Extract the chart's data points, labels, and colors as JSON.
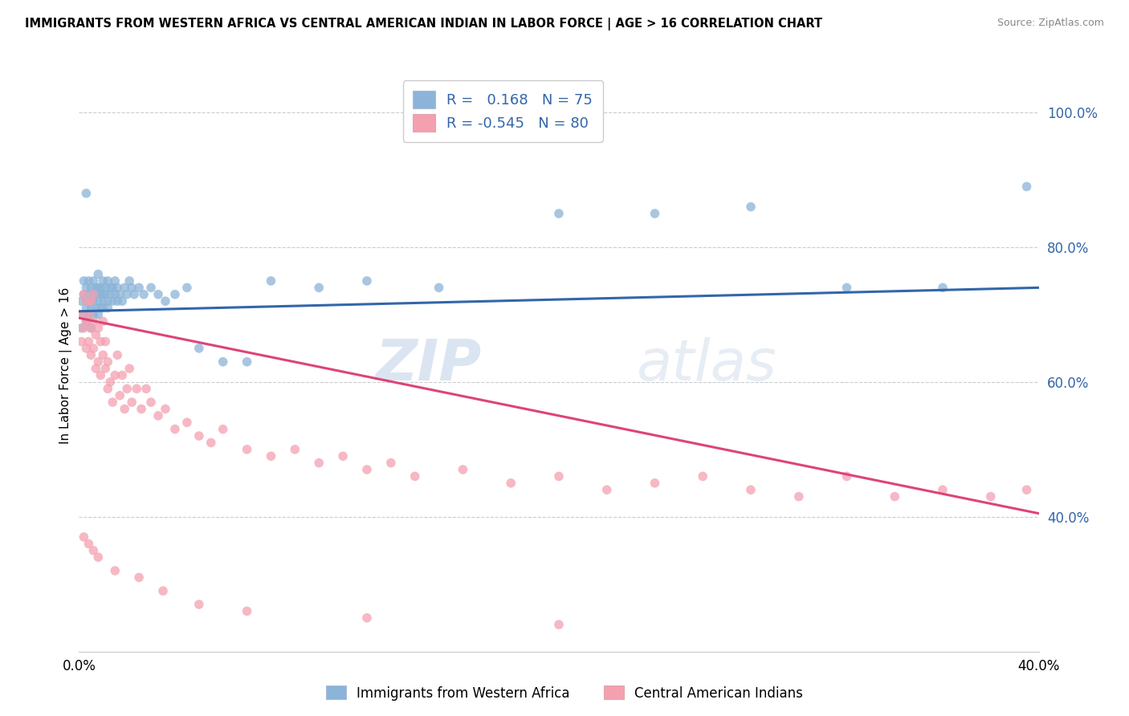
{
  "title": "IMMIGRANTS FROM WESTERN AFRICA VS CENTRAL AMERICAN INDIAN IN LABOR FORCE | AGE > 16 CORRELATION CHART",
  "source": "Source: ZipAtlas.com",
  "ylabel": "In Labor Force | Age > 16",
  "xlim": [
    0.0,
    0.4
  ],
  "ylim": [
    0.2,
    1.05
  ],
  "x_tick_positions": [
    0.0,
    0.1,
    0.2,
    0.3,
    0.4
  ],
  "x_tick_labels": [
    "0.0%",
    "",
    "",
    "",
    "40.0%"
  ],
  "y_ticks_right": [
    0.4,
    0.6,
    0.8,
    1.0
  ],
  "y_tick_labels_right": [
    "40.0%",
    "60.0%",
    "80.0%",
    "100.0%"
  ],
  "blue_R": 0.168,
  "blue_N": 75,
  "pink_R": -0.545,
  "pink_N": 80,
  "blue_color": "#8BB4D8",
  "pink_color": "#F4A0B0",
  "blue_line_color": "#3366AA",
  "pink_line_color": "#DD4477",
  "watermark": "ZIPatlas",
  "legend_label_blue": "Immigrants from Western Africa",
  "legend_label_pink": "Central American Indians",
  "blue_scatter_x": [
    0.001,
    0.001,
    0.002,
    0.002,
    0.002,
    0.003,
    0.003,
    0.003,
    0.003,
    0.004,
    0.004,
    0.004,
    0.005,
    0.005,
    0.005,
    0.005,
    0.006,
    0.006,
    0.006,
    0.006,
    0.007,
    0.007,
    0.007,
    0.008,
    0.008,
    0.008,
    0.008,
    0.009,
    0.009,
    0.009,
    0.01,
    0.01,
    0.01,
    0.01,
    0.011,
    0.011,
    0.012,
    0.012,
    0.012,
    0.013,
    0.013,
    0.014,
    0.014,
    0.015,
    0.015,
    0.016,
    0.016,
    0.017,
    0.018,
    0.019,
    0.02,
    0.021,
    0.022,
    0.023,
    0.025,
    0.027,
    0.03,
    0.033,
    0.036,
    0.04,
    0.045,
    0.05,
    0.06,
    0.07,
    0.08,
    0.1,
    0.12,
    0.15,
    0.2,
    0.24,
    0.28,
    0.32,
    0.36,
    0.395,
    0.003
  ],
  "blue_scatter_y": [
    0.72,
    0.68,
    0.75,
    0.7,
    0.73,
    0.71,
    0.74,
    0.69,
    0.72,
    0.73,
    0.7,
    0.75,
    0.72,
    0.74,
    0.68,
    0.71,
    0.73,
    0.75,
    0.7,
    0.72,
    0.74,
    0.71,
    0.73,
    0.72,
    0.74,
    0.7,
    0.76,
    0.73,
    0.71,
    0.74,
    0.73,
    0.75,
    0.71,
    0.72,
    0.74,
    0.73,
    0.72,
    0.75,
    0.71,
    0.74,
    0.73,
    0.72,
    0.74,
    0.73,
    0.75,
    0.74,
    0.72,
    0.73,
    0.72,
    0.74,
    0.73,
    0.75,
    0.74,
    0.73,
    0.74,
    0.73,
    0.74,
    0.73,
    0.72,
    0.73,
    0.74,
    0.65,
    0.63,
    0.63,
    0.75,
    0.74,
    0.75,
    0.74,
    0.85,
    0.85,
    0.86,
    0.74,
    0.74,
    0.89,
    0.88
  ],
  "pink_scatter_x": [
    0.001,
    0.001,
    0.002,
    0.002,
    0.003,
    0.003,
    0.003,
    0.004,
    0.004,
    0.005,
    0.005,
    0.005,
    0.006,
    0.006,
    0.006,
    0.007,
    0.007,
    0.008,
    0.008,
    0.009,
    0.009,
    0.01,
    0.01,
    0.011,
    0.011,
    0.012,
    0.012,
    0.013,
    0.014,
    0.015,
    0.016,
    0.017,
    0.018,
    0.019,
    0.02,
    0.021,
    0.022,
    0.024,
    0.026,
    0.028,
    0.03,
    0.033,
    0.036,
    0.04,
    0.045,
    0.05,
    0.055,
    0.06,
    0.07,
    0.08,
    0.09,
    0.1,
    0.11,
    0.12,
    0.13,
    0.14,
    0.16,
    0.18,
    0.2,
    0.22,
    0.24,
    0.26,
    0.28,
    0.3,
    0.32,
    0.34,
    0.36,
    0.38,
    0.395,
    0.002,
    0.004,
    0.006,
    0.008,
    0.015,
    0.025,
    0.035,
    0.05,
    0.07,
    0.12,
    0.2
  ],
  "pink_scatter_y": [
    0.7,
    0.66,
    0.68,
    0.73,
    0.65,
    0.69,
    0.72,
    0.66,
    0.7,
    0.64,
    0.68,
    0.72,
    0.65,
    0.69,
    0.73,
    0.62,
    0.67,
    0.63,
    0.68,
    0.61,
    0.66,
    0.64,
    0.69,
    0.62,
    0.66,
    0.59,
    0.63,
    0.6,
    0.57,
    0.61,
    0.64,
    0.58,
    0.61,
    0.56,
    0.59,
    0.62,
    0.57,
    0.59,
    0.56,
    0.59,
    0.57,
    0.55,
    0.56,
    0.53,
    0.54,
    0.52,
    0.51,
    0.53,
    0.5,
    0.49,
    0.5,
    0.48,
    0.49,
    0.47,
    0.48,
    0.46,
    0.47,
    0.45,
    0.46,
    0.44,
    0.45,
    0.46,
    0.44,
    0.43,
    0.46,
    0.43,
    0.44,
    0.43,
    0.44,
    0.37,
    0.36,
    0.35,
    0.34,
    0.32,
    0.31,
    0.29,
    0.27,
    0.26,
    0.25,
    0.24
  ],
  "blue_line_x": [
    0.0,
    0.4
  ],
  "blue_line_y": [
    0.705,
    0.74
  ],
  "pink_line_x": [
    0.0,
    0.4
  ],
  "pink_line_y": [
    0.695,
    0.405
  ]
}
